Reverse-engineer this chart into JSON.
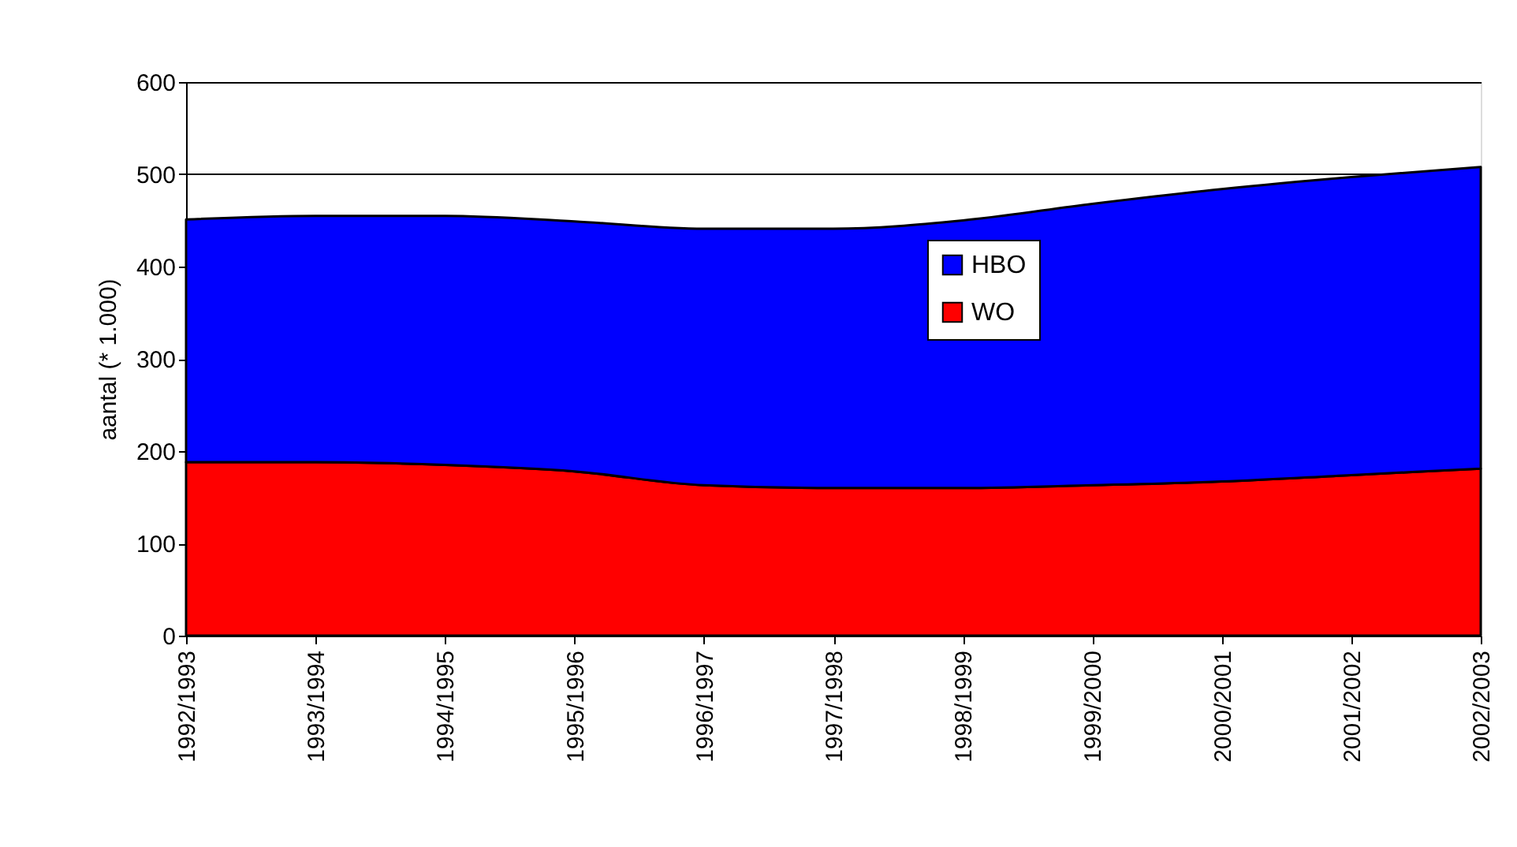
{
  "chart_data": {
    "type": "area",
    "stacked": true,
    "ylabel": "aantal (* 1.000)",
    "categories": [
      "1992/1993",
      "1993/1994",
      "1994/1995",
      "1995/1996",
      "1996/1997",
      "1997/1998",
      "1998/1999",
      "1999/2000",
      "2000/2001",
      "2001/2002",
      "2002/2003"
    ],
    "series": [
      {
        "name": "WO",
        "color": "#ff0000",
        "values": [
          188,
          188,
          185,
          178,
          163,
          160,
          160,
          163,
          167,
          174,
          181
        ]
      },
      {
        "name": "HBO",
        "color": "#0000ff",
        "values": [
          263,
          267,
          270,
          271,
          278,
          281,
          290,
          305,
          317,
          323,
          327
        ]
      }
    ],
    "ylim": [
      0,
      600
    ],
    "yticks": [
      0,
      100,
      200,
      300,
      400,
      500,
      600
    ],
    "grid": "y",
    "legend": "center"
  }
}
